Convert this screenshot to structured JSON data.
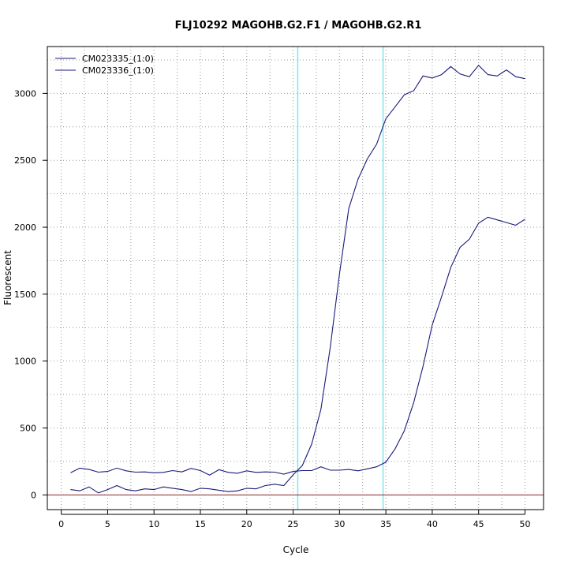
{
  "chart_data": {
    "type": "line",
    "title": "FLJ10292  MAGOHB.G2.F1 / MAGOHB.G2.R1",
    "xlabel": "Cycle",
    "ylabel": "Fluorescent",
    "xlim": [
      -1.5,
      52
    ],
    "ylim": [
      -110,
      3350
    ],
    "x_ticks": [
      0,
      5,
      10,
      15,
      20,
      25,
      30,
      35,
      40,
      45,
      50
    ],
    "y_ticks": [
      0,
      500,
      1000,
      1500,
      2000,
      2500,
      3000
    ],
    "grid": true,
    "legend_position": "top-left",
    "baseline_y": 0,
    "threshold_cycles": [
      25.5,
      34.7
    ],
    "colors": {
      "series": "#1a1a7a",
      "threshold": "#7fe6f0",
      "baseline": "#8b2a2a",
      "grid": "#999999"
    },
    "series": [
      {
        "name": "CM023335_(1:0)",
        "x": [
          1,
          2,
          3,
          4,
          5,
          6,
          7,
          8,
          9,
          10,
          11,
          12,
          13,
          14,
          15,
          16,
          17,
          18,
          19,
          20,
          21,
          22,
          23,
          24,
          25,
          26,
          27,
          28,
          29,
          30,
          31,
          32,
          33,
          34,
          35,
          36,
          37,
          38,
          39,
          40,
          41,
          42,
          43,
          44,
          45,
          46,
          47,
          48,
          49,
          50
        ],
        "values": [
          165,
          200,
          190,
          170,
          175,
          200,
          180,
          170,
          172,
          165,
          168,
          182,
          172,
          198,
          182,
          148,
          188,
          168,
          162,
          180,
          168,
          172,
          170,
          155,
          175,
          182,
          182,
          210,
          185,
          185,
          190,
          180,
          195,
          210,
          245,
          345,
          480,
          690,
          960,
          1270,
          1480,
          1700,
          1850,
          1910,
          2030,
          2075,
          2055,
          2035,
          2015,
          2060
        ]
      },
      {
        "name": "CM023336_(1:0)",
        "x": [
          1,
          2,
          3,
          4,
          5,
          6,
          7,
          8,
          9,
          10,
          11,
          12,
          13,
          14,
          15,
          16,
          17,
          18,
          19,
          20,
          21,
          22,
          23,
          24,
          25,
          26,
          27,
          28,
          29,
          30,
          31,
          32,
          33,
          34,
          35,
          36,
          37,
          38,
          39,
          40,
          41,
          42,
          43,
          44,
          45,
          46,
          47,
          48,
          49,
          50
        ],
        "values": [
          40,
          30,
          60,
          15,
          40,
          70,
          40,
          30,
          45,
          40,
          60,
          50,
          40,
          25,
          50,
          45,
          35,
          25,
          30,
          50,
          45,
          70,
          80,
          70,
          150,
          220,
          380,
          640,
          1100,
          1650,
          2140,
          2360,
          2510,
          2620,
          2810,
          2900,
          2990,
          3020,
          3130,
          3115,
          3140,
          3200,
          3145,
          3125,
          3210,
          3140,
          3130,
          3175,
          3125,
          3110
        ]
      }
    ]
  }
}
